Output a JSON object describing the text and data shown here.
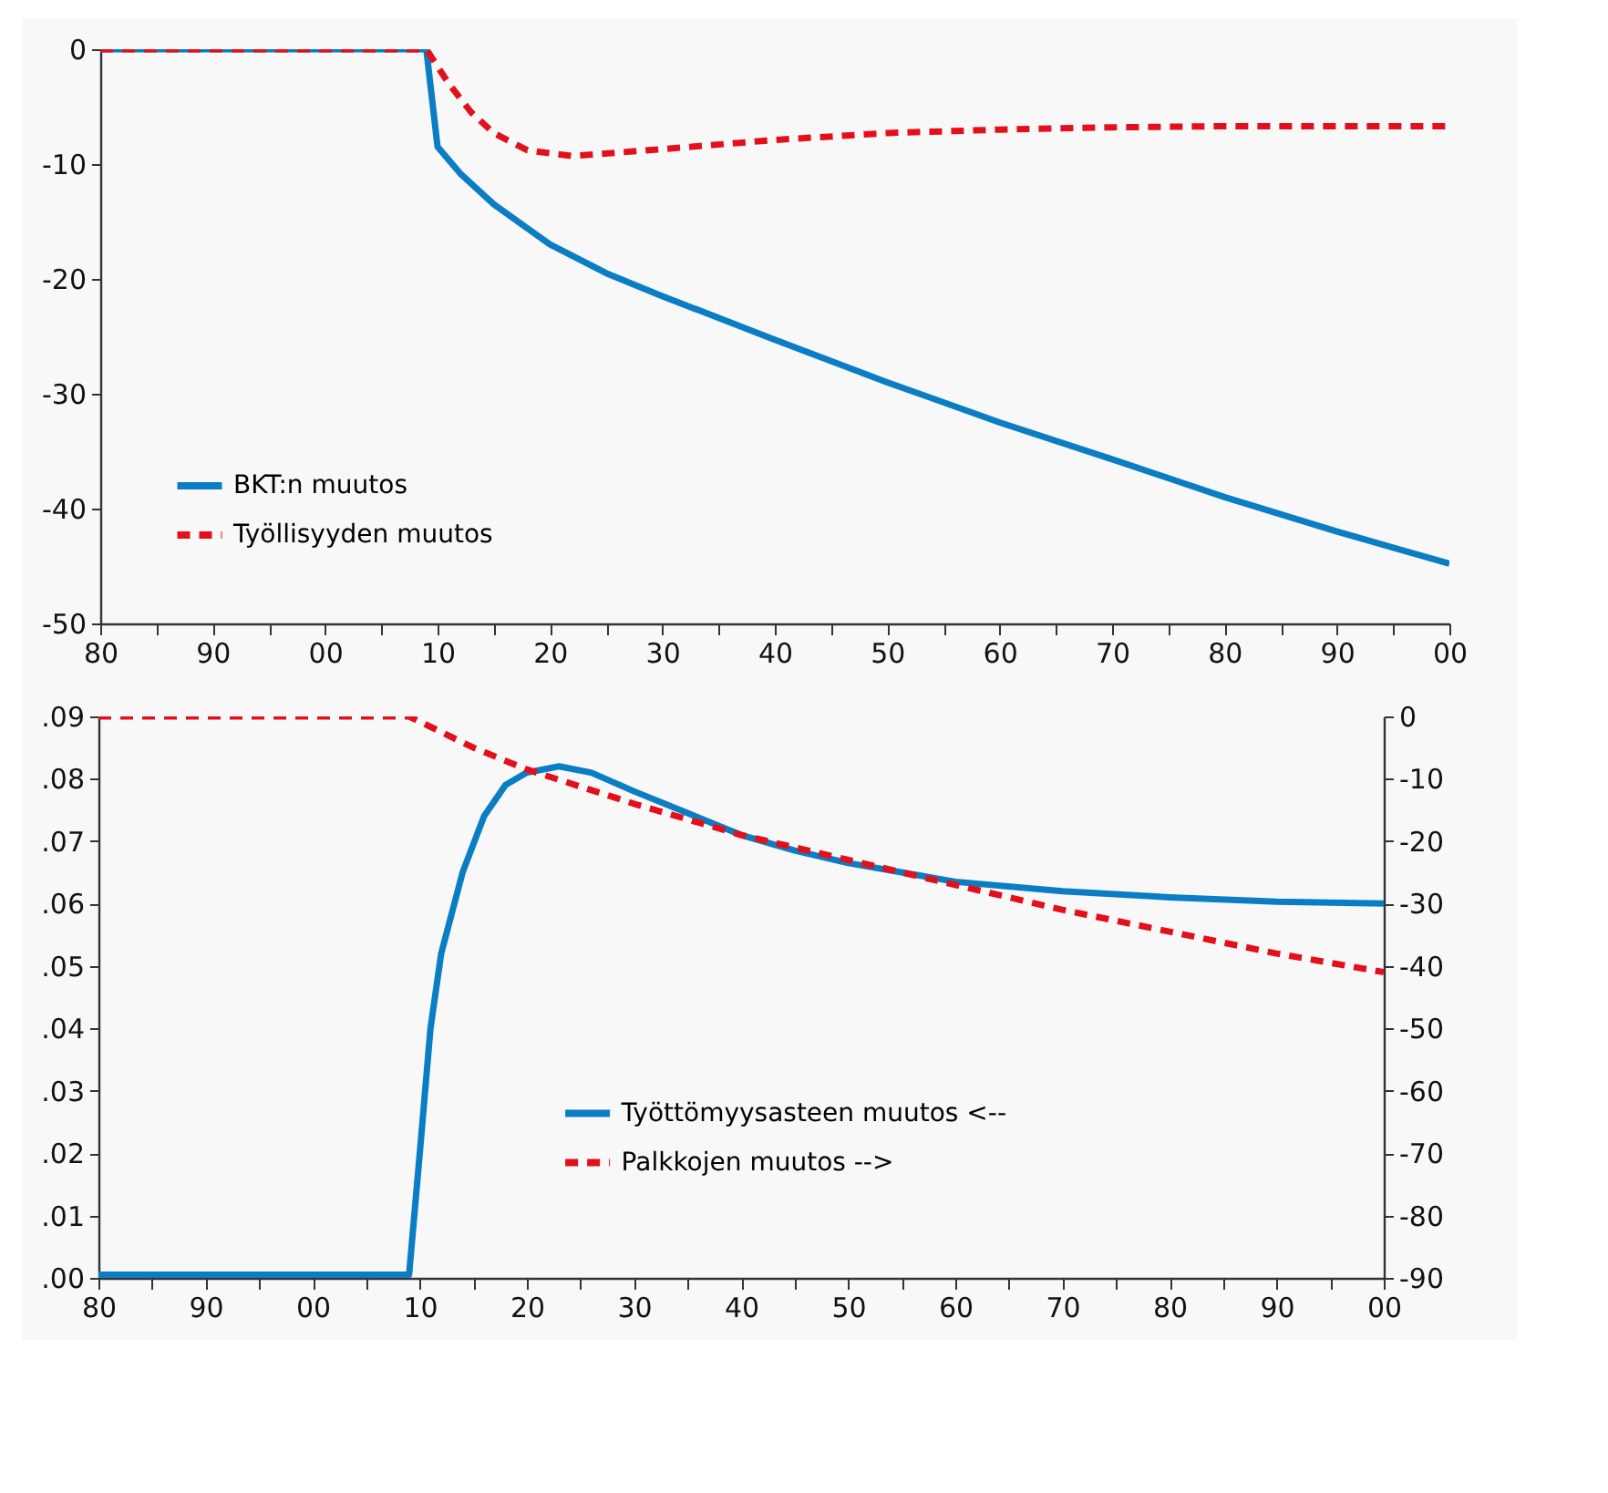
{
  "chart_data": [
    {
      "type": "line",
      "legend": "bottom left",
      "grid": false,
      "xlim": [
        1980,
        2100
      ],
      "xticks": [
        {
          "value": 1980,
          "label": "80"
        },
        {
          "value": 1985,
          "label": null
        },
        {
          "value": 1990,
          "label": "90"
        },
        {
          "value": 1995,
          "label": null
        },
        {
          "value": 2000,
          "label": "00"
        },
        {
          "value": 2005,
          "label": null
        },
        {
          "value": 2010,
          "label": "10"
        },
        {
          "value": 2015,
          "label": null
        },
        {
          "value": 2020,
          "label": "20"
        },
        {
          "value": 2025,
          "label": null
        },
        {
          "value": 2030,
          "label": "30"
        },
        {
          "value": 2035,
          "label": null
        },
        {
          "value": 2040,
          "label": "40"
        },
        {
          "value": 2045,
          "label": null
        },
        {
          "value": 2050,
          "label": "50"
        },
        {
          "value": 2055,
          "label": null
        },
        {
          "value": 2060,
          "label": "60"
        },
        {
          "value": 2065,
          "label": null
        },
        {
          "value": 2070,
          "label": "70"
        },
        {
          "value": 2075,
          "label": null
        },
        {
          "value": 2080,
          "label": "80"
        },
        {
          "value": 2085,
          "label": null
        },
        {
          "value": 2090,
          "label": "90"
        },
        {
          "value": 2095,
          "label": null
        },
        {
          "value": 2100,
          "label": "00"
        }
      ],
      "ylim": [
        -50,
        0
      ],
      "yticks": [
        -50,
        -40,
        -30,
        -20,
        -10,
        0
      ],
      "series": [
        {
          "name": "BKT:n muutos",
          "color": "#0a7dc4",
          "line_style": "solid",
          "x": [
            1980,
            2009,
            2010,
            2012,
            2015,
            2020,
            2025,
            2030,
            2040,
            2050,
            2060,
            2070,
            2080,
            2090,
            2100
          ],
          "values": [
            0,
            0,
            -8.5,
            -10.8,
            -13.5,
            -17,
            -19.5,
            -21.5,
            -25.3,
            -29,
            -32.5,
            -35.7,
            -39,
            -42,
            -44.8
          ]
        },
        {
          "name": "Työllisyyden muutos",
          "color": "#e3101b",
          "line_style": "dashed",
          "x": [
            1980,
            2009,
            2011,
            2013,
            2015,
            2018,
            2022,
            2030,
            2040,
            2050,
            2060,
            2070,
            2080,
            2100
          ],
          "values": [
            0,
            0,
            -3,
            -5.5,
            -7.3,
            -8.8,
            -9.3,
            -8.7,
            -7.9,
            -7.3,
            -7,
            -6.8,
            -6.7,
            -6.7
          ]
        }
      ]
    },
    {
      "type": "line",
      "legend": "bottom",
      "grid": false,
      "xlim": [
        1980,
        2100
      ],
      "xticks": [
        {
          "value": 1980,
          "label": "80"
        },
        {
          "value": 1985,
          "label": null
        },
        {
          "value": 1990,
          "label": "90"
        },
        {
          "value": 1995,
          "label": null
        },
        {
          "value": 2000,
          "label": "00"
        },
        {
          "value": 2005,
          "label": null
        },
        {
          "value": 2010,
          "label": "10"
        },
        {
          "value": 2015,
          "label": null
        },
        {
          "value": 2020,
          "label": "20"
        },
        {
          "value": 2025,
          "label": null
        },
        {
          "value": 2030,
          "label": "30"
        },
        {
          "value": 2035,
          "label": null
        },
        {
          "value": 2040,
          "label": "40"
        },
        {
          "value": 2045,
          "label": null
        },
        {
          "value": 2050,
          "label": "50"
        },
        {
          "value": 2055,
          "label": null
        },
        {
          "value": 2060,
          "label": "60"
        },
        {
          "value": 2065,
          "label": null
        },
        {
          "value": 2070,
          "label": "70"
        },
        {
          "value": 2075,
          "label": null
        },
        {
          "value": 2080,
          "label": "80"
        },
        {
          "value": 2085,
          "label": null
        },
        {
          "value": 2090,
          "label": "90"
        },
        {
          "value": 2095,
          "label": null
        },
        {
          "value": 2100,
          "label": "00"
        }
      ],
      "ylim": [
        0,
        0.09
      ],
      "yticks": [
        {
          "value": 0,
          "label": ".00"
        },
        {
          "value": 0.01,
          "label": ".01"
        },
        {
          "value": 0.02,
          "label": ".02"
        },
        {
          "value": 0.03,
          "label": ".03"
        },
        {
          "value": 0.04,
          "label": ".04"
        },
        {
          "value": 0.05,
          "label": ".05"
        },
        {
          "value": 0.06,
          "label": ".06"
        },
        {
          "value": 0.07,
          "label": ".07"
        },
        {
          "value": 0.08,
          "label": ".08"
        },
        {
          "value": 0.09,
          "label": ".09"
        }
      ],
      "y2lim": [
        -90,
        0
      ],
      "y2ticks": [
        -90,
        -80,
        -70,
        -60,
        -50,
        -40,
        -30,
        -20,
        -10,
        0
      ],
      "series": [
        {
          "name": "Työttömyysasteen muutos  <--",
          "color": "#0a7dc4",
          "line_style": "solid",
          "x": [
            1980,
            2009,
            2010,
            2011,
            2012,
            2014,
            2016,
            2018,
            2020,
            2023,
            2026,
            2030,
            2035,
            2040,
            2045,
            2050,
            2060,
            2070,
            2080,
            2090,
            2100
          ],
          "values": [
            0.0005,
            0.0005,
            0.02,
            0.04,
            0.052,
            0.065,
            0.074,
            0.079,
            0.081,
            0.082,
            0.081,
            0.078,
            0.0745,
            0.071,
            0.0685,
            0.0665,
            0.0635,
            0.062,
            0.061,
            0.0603,
            0.06
          ]
        },
        {
          "name": "Palkkojen muutos -->",
          "color": "#e3101b",
          "line_style": "dashed",
          "axis": "y2",
          "x": [
            1980,
            2009,
            2015,
            2020,
            2030,
            2040,
            2050,
            2060,
            2070,
            2080,
            2090,
            2100
          ],
          "values": [
            0,
            0,
            -5,
            -8.5,
            -14,
            -19,
            -23,
            -27,
            -31,
            -34.5,
            -38,
            -41
          ]
        }
      ]
    }
  ]
}
